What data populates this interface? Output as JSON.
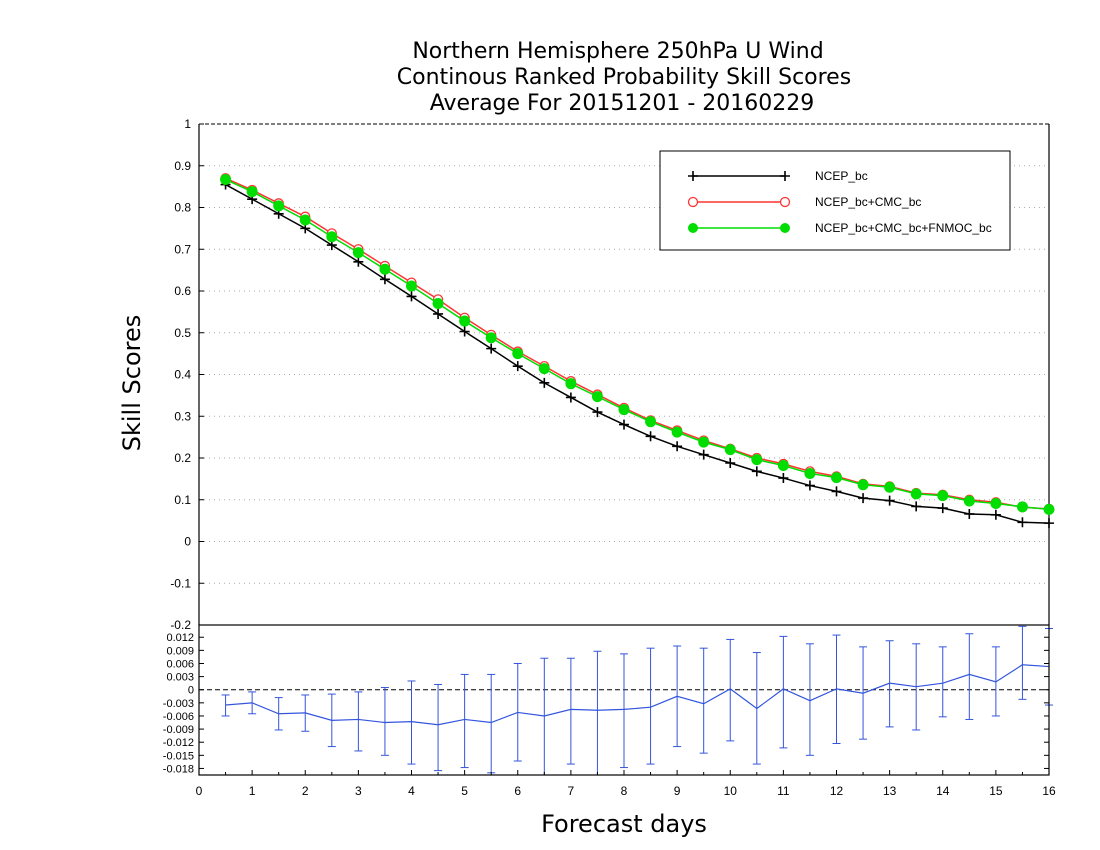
{
  "chart_data": [
    {
      "type": "line",
      "title_lines": [
        "Northern Hemisphere 250hPa U Wind",
        "Continous Ranked Probability Skill Scores",
        "Average For 20151201 - 20160229"
      ],
      "ylabel": "Skill Scores",
      "ylim": [
        -0.2,
        1
      ],
      "xlim": [
        0,
        16
      ],
      "yticks": [
        "-0.2",
        "-0.1",
        "0",
        "0.1",
        "0.2",
        "0.3",
        "0.4",
        "0.5",
        "0.6",
        "0.7",
        "0.8",
        "0.9",
        "1"
      ],
      "grid": true,
      "legend_position": "top-right",
      "x": [
        0.5,
        1,
        1.5,
        2,
        2.5,
        3,
        3.5,
        4,
        4.5,
        5,
        5.5,
        6,
        6.5,
        7,
        7.5,
        8,
        8.5,
        9,
        9.5,
        10,
        10.5,
        11,
        11.5,
        12,
        12.5,
        13,
        13.5,
        14,
        14.5,
        15,
        15.5,
        16
      ],
      "series": [
        {
          "name": "NCEP_bc",
          "color": "#000000",
          "marker": "plus",
          "values": [
            0.855,
            0.82,
            0.785,
            0.75,
            0.71,
            0.67,
            0.628,
            0.587,
            0.545,
            0.503,
            0.462,
            0.42,
            0.38,
            0.345,
            0.31,
            0.28,
            0.252,
            0.228,
            0.208,
            0.188,
            0.168,
            0.152,
            0.134,
            0.12,
            0.104,
            0.098,
            0.084,
            0.08,
            0.066,
            0.064,
            0.046,
            0.044
          ]
        },
        {
          "name": "NCEP_bc+CMC_bc",
          "color": "#ff3333",
          "marker": "open-circle",
          "values": [
            0.87,
            0.842,
            0.81,
            0.778,
            0.738,
            0.7,
            0.66,
            0.62,
            0.58,
            0.536,
            0.495,
            0.455,
            0.42,
            0.384,
            0.352,
            0.32,
            0.29,
            0.266,
            0.242,
            0.222,
            0.2,
            0.186,
            0.168,
            0.156,
            0.138,
            0.132,
            0.116,
            0.112,
            0.1,
            0.094,
            0.082,
            0.078
          ]
        },
        {
          "name": "NCEP_bc+CMC_bc+FNMOC_bc",
          "color": "#00dd00",
          "marker": "filled-circle",
          "values": [
            0.867,
            0.838,
            0.804,
            0.77,
            0.73,
            0.692,
            0.652,
            0.612,
            0.57,
            0.528,
            0.488,
            0.45,
            0.414,
            0.378,
            0.347,
            0.316,
            0.287,
            0.262,
            0.238,
            0.22,
            0.196,
            0.182,
            0.163,
            0.153,
            0.136,
            0.13,
            0.114,
            0.11,
            0.097,
            0.091,
            0.083,
            0.077
          ]
        }
      ]
    },
    {
      "type": "line",
      "subtype": "difference with error bars",
      "xlabel": "Forecast days",
      "ylim": [
        -0.0195,
        0.0148
      ],
      "yticks": [
        "-0.018",
        "-0.015",
        "-0.012",
        "-0.009",
        "-0.006",
        "-0.003",
        "0",
        "0.003",
        "0.006",
        "0.009",
        "0.012"
      ],
      "xticks": [
        "0",
        "1",
        "2",
        "3",
        "4",
        "5",
        "6",
        "7",
        "8",
        "9",
        "10",
        "11",
        "12",
        "13",
        "14",
        "15",
        "16"
      ],
      "x": [
        0.5,
        1,
        1.5,
        2,
        2.5,
        3,
        3.5,
        4,
        4.5,
        5,
        5.5,
        6,
        6.5,
        7,
        7.5,
        8,
        8.5,
        9,
        9.5,
        10,
        10.5,
        11,
        11.5,
        12,
        12.5,
        13,
        13.5,
        14,
        14.5,
        15,
        15.5,
        16
      ],
      "series": [
        {
          "color": "#3355dd",
          "values": [
            -0.0035,
            -0.003,
            -0.0055,
            -0.0053,
            -0.007,
            -0.0068,
            -0.0075,
            -0.0073,
            -0.008,
            -0.0068,
            -0.0075,
            -0.0052,
            -0.006,
            -0.0045,
            -0.0047,
            -0.0045,
            -0.004,
            -0.0015,
            -0.0032,
            0.0002,
            -0.0043,
            0.0002,
            -0.0025,
            0.0002,
            -0.0008,
            0.0015,
            0.0007,
            0.0015,
            0.0035,
            0.0018,
            0.0057,
            0.0053
          ],
          "err_low": [
            -0.006,
            -0.0055,
            -0.0092,
            -0.0095,
            -0.013,
            -0.014,
            -0.015,
            -0.017,
            -0.0185,
            -0.0178,
            -0.019,
            -0.0163,
            -0.0195,
            -0.017,
            -0.0195,
            -0.0178,
            -0.017,
            -0.013,
            -0.0145,
            -0.0117,
            -0.017,
            -0.0133,
            -0.015,
            -0.0123,
            -0.0113,
            -0.0085,
            -0.0092,
            -0.0062,
            -0.0068,
            -0.006,
            -0.0022,
            -0.0035
          ],
          "err_high": [
            -0.0012,
            -0.0005,
            -0.0018,
            -0.0012,
            -0.001,
            -0.0005,
            0.0005,
            0.002,
            0.0012,
            0.0035,
            0.0035,
            0.006,
            0.0072,
            0.0072,
            0.0088,
            0.0082,
            0.0095,
            0.01,
            0.0095,
            0.0115,
            0.0085,
            0.0122,
            0.0105,
            0.0125,
            0.0098,
            0.0112,
            0.0105,
            0.0098,
            0.0128,
            0.0098,
            0.0145,
            0.014
          ]
        }
      ]
    }
  ]
}
